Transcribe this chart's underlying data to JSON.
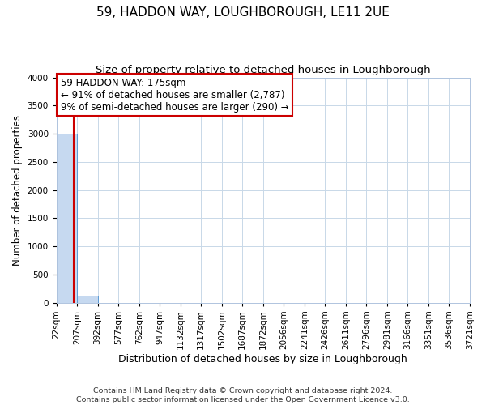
{
  "title": "59, HADDON WAY, LOUGHBOROUGH, LE11 2UE",
  "subtitle": "Size of property relative to detached houses in Loughborough",
  "xlabel": "Distribution of detached houses by size in Loughborough",
  "ylabel": "Number of detached properties",
  "footer_line1": "Contains HM Land Registry data © Crown copyright and database right 2024.",
  "footer_line2": "Contains public sector information licensed under the Open Government Licence v3.0.",
  "bar_edges": [
    22,
    207,
    392,
    577,
    762,
    947,
    1132,
    1317,
    1502,
    1687,
    1872,
    2056,
    2241,
    2426,
    2611,
    2796,
    2981,
    3166,
    3351,
    3536,
    3721
  ],
  "bar_heights": [
    3000,
    130,
    0,
    0,
    0,
    0,
    0,
    0,
    0,
    0,
    0,
    0,
    0,
    0,
    0,
    0,
    0,
    0,
    0,
    0
  ],
  "bar_color": "#c6d9f0",
  "bar_edgecolor": "#5b9bd5",
  "property_size": 175,
  "red_line_color": "#cc0000",
  "annotation_text_line1": "59 HADDON WAY: 175sqm",
  "annotation_text_line2": "← 91% of detached houses are smaller (2,787)",
  "annotation_text_line3": "9% of semi-detached houses are larger (290) →",
  "annotation_box_color": "#ffffff",
  "annotation_box_edgecolor": "#cc0000",
  "ylim": [
    0,
    4000
  ],
  "yticks": [
    0,
    500,
    1000,
    1500,
    2000,
    2500,
    3000,
    3500,
    4000
  ],
  "background_color": "#ffffff",
  "grid_color": "#c8d8e8",
  "title_fontsize": 11,
  "subtitle_fontsize": 9.5,
  "xlabel_fontsize": 9,
  "ylabel_fontsize": 8.5,
  "tick_fontsize": 7.5,
  "annotation_fontsize": 8.5,
  "footer_fontsize": 6.8
}
